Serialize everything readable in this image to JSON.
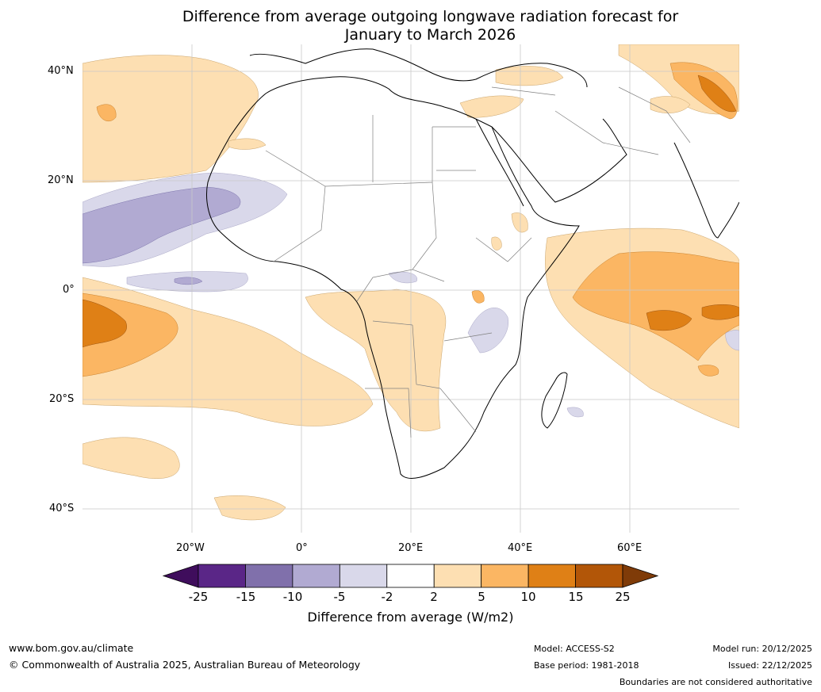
{
  "title": {
    "line1": "Difference from average outgoing longwave radiation forecast for",
    "line2": "January to March 2026"
  },
  "map": {
    "lat_labels": [
      "40°N",
      "20°N",
      "0°",
      "20°S",
      "40°S"
    ],
    "lon_labels": [
      "20°W",
      "0°",
      "20°E",
      "40°E",
      "60°E"
    ]
  },
  "colorbar": {
    "ticks": [
      "-25",
      "-15",
      "-10",
      "-5",
      "-2",
      "2",
      "5",
      "10",
      "15",
      "25"
    ],
    "colors": [
      "#3f0d5c",
      "#5a2687",
      "#8070ab",
      "#b1aad2",
      "#d9d8ea",
      "#ffffff",
      "#fddfb2",
      "#fbb663",
      "#df8016",
      "#b25608",
      "#7f3b08"
    ],
    "label": "Difference from average (W/m2)"
  },
  "footer": {
    "website": "www.bom.gov.au/climate",
    "copyright": "© Commonwealth of Australia 2025, Australian Bureau of Meteorology",
    "model": "Model: ACCESS-S2",
    "base_period": "Base period: 1981-2018",
    "model_run": "Model run: 20/12/2025",
    "issued": "Issued: 22/12/2025",
    "disclaimer": "Boundaries are not considered authoritative"
  }
}
